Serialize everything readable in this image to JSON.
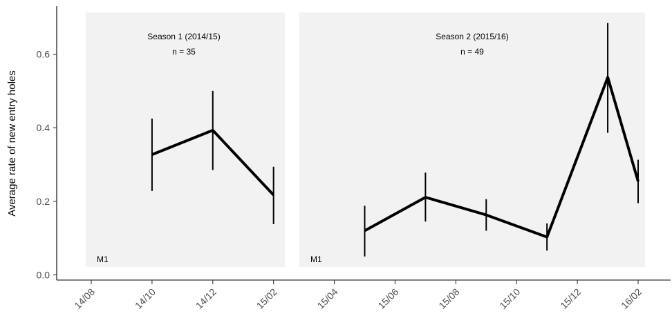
{
  "chart_data": {
    "type": "line",
    "ylabel": "Average rate of new entry holes",
    "ylim": [
      0,
      0.7
    ],
    "yticks": [
      0.0,
      0.2,
      0.4,
      0.6
    ],
    "ytick_labels": [
      "0.0",
      "0.2",
      "0.4",
      "0.6"
    ],
    "xticks": [
      {
        "date": "2014-08",
        "label": "14/08"
      },
      {
        "date": "2014-10",
        "label": "14/10"
      },
      {
        "date": "2014-12",
        "label": "14/12"
      },
      {
        "date": "2015-02",
        "label": "15/02"
      },
      {
        "date": "2015-04",
        "label": "15/04"
      },
      {
        "date": "2015-06",
        "label": "15/06"
      },
      {
        "date": "2015-08",
        "label": "15/08"
      },
      {
        "date": "2015-10",
        "label": "15/10"
      },
      {
        "date": "2015-12",
        "label": "15/12"
      },
      {
        "date": "2016-02",
        "label": "16/02"
      }
    ],
    "xlim": [
      "2014-07",
      "2016-03"
    ],
    "grid": false,
    "panel_color": "#f2f2f2",
    "line_color": "#000000",
    "panels": [
      {
        "title": "Season 1 (2014/15)",
        "n_label": "n = 35",
        "tag": "M1",
        "start": "2014-07",
        "end": "2015-02",
        "points": [
          {
            "x": "2014-10",
            "y": 0.327,
            "lo": 0.228,
            "hi": 0.425
          },
          {
            "x": "2014-12",
            "y": 0.393,
            "lo": 0.285,
            "hi": 0.5
          },
          {
            "x": "2015-02",
            "y": 0.217,
            "lo": 0.138,
            "hi": 0.294
          }
        ]
      },
      {
        "title": "Season 2 (2015/16)",
        "n_label": "n = 49",
        "tag": "M1",
        "start": "2015-03",
        "end": "2016-02",
        "points": [
          {
            "x": "2015-05",
            "y": 0.12,
            "lo": 0.05,
            "hi": 0.188
          },
          {
            "x": "2015-07",
            "y": 0.211,
            "lo": 0.145,
            "hi": 0.278
          },
          {
            "x": "2015-09",
            "y": 0.163,
            "lo": 0.12,
            "hi": 0.206
          },
          {
            "x": "2015-11",
            "y": 0.103,
            "lo": 0.066,
            "hi": 0.14
          },
          {
            "x": "2016-01",
            "y": 0.537,
            "lo": 0.386,
            "hi": 0.685
          },
          {
            "x": "2016-02",
            "y": 0.254,
            "lo": 0.195,
            "hi": 0.313
          }
        ]
      }
    ]
  }
}
